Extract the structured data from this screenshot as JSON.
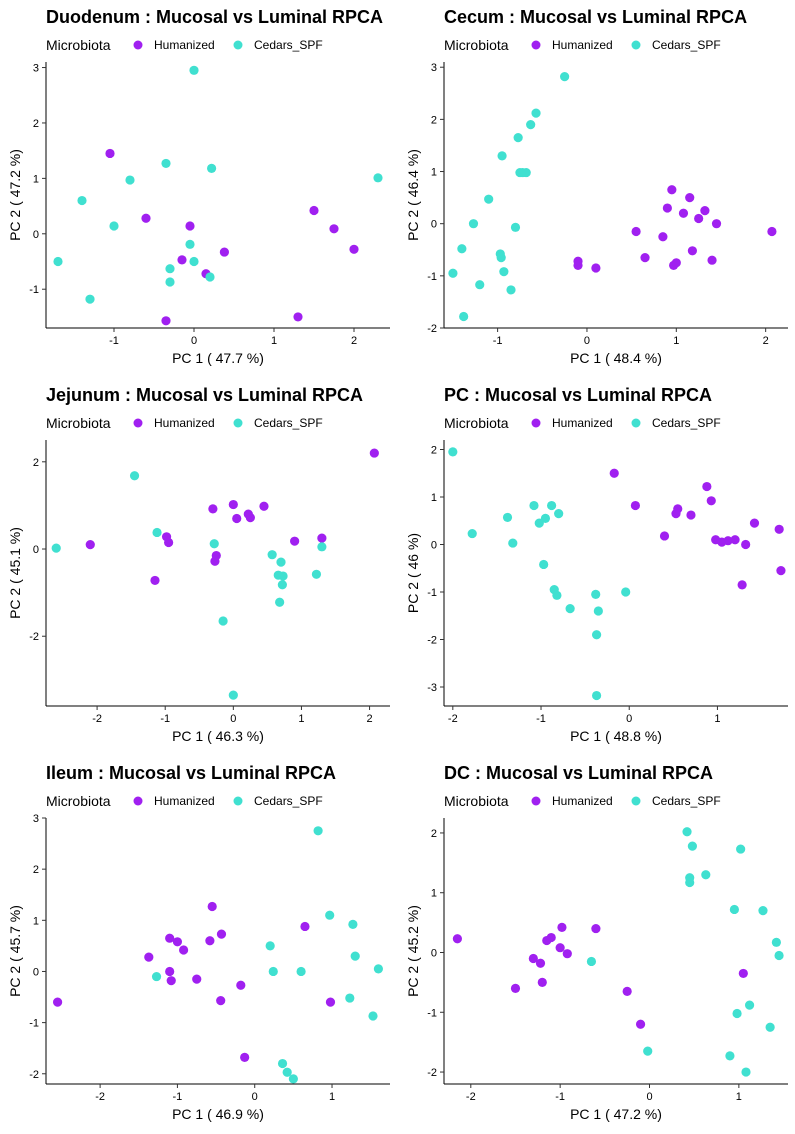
{
  "colors": {
    "humanized": "#A020F0",
    "cedars_spf": "#40E0D0"
  },
  "legend": {
    "title": "Microbiota",
    "entries": [
      "Humanized",
      "Cedars_SPF"
    ]
  },
  "chart_data": [
    {
      "type": "scatter",
      "title": "Duodenum : Mucosal vs Luminal RPCA",
      "xlabel": "PC 1 ( 47.7 %)",
      "ylabel": "PC 2 ( 47.2 %)",
      "xlim": [
        -1.85,
        2.45
      ],
      "ylim": [
        -1.7,
        3.1
      ],
      "xticks": [
        -1,
        0,
        1,
        2
      ],
      "yticks": [
        -1,
        0,
        1,
        2,
        3
      ],
      "grid": false,
      "legend_position": "top",
      "series": [
        {
          "name": "Humanized",
          "color": "#A020F0",
          "x": [
            -1.05,
            -0.6,
            -0.35,
            -0.15,
            -0.05,
            0.15,
            0.38,
            1.3,
            1.5,
            1.75,
            2.0
          ],
          "y": [
            1.45,
            0.28,
            -1.57,
            -0.47,
            0.14,
            -0.72,
            -0.33,
            -1.5,
            0.42,
            0.09,
            -0.28
          ]
        },
        {
          "name": "Cedars_SPF",
          "color": "#40E0D0",
          "x": [
            -1.7,
            -1.4,
            -1.3,
            -1.0,
            -0.8,
            -0.35,
            -0.3,
            -0.3,
            0.0,
            -0.05,
            0.0,
            0.22,
            0.2,
            2.3
          ],
          "y": [
            -0.5,
            0.6,
            -1.18,
            0.14,
            0.97,
            1.27,
            -0.63,
            -0.87,
            2.95,
            -0.19,
            -0.5,
            1.18,
            -0.78,
            1.01
          ]
        }
      ]
    },
    {
      "type": "scatter",
      "title": "Cecum : Mucosal vs Luminal RPCA",
      "xlabel": "PC 1 ( 48.4 %)",
      "ylabel": "PC 2 ( 46.4 %)",
      "xlim": [
        -1.6,
        2.25
      ],
      "ylim": [
        -2.0,
        3.1
      ],
      "xticks": [
        -1,
        0,
        1,
        2
      ],
      "yticks": [
        -2,
        -1,
        0,
        1,
        2,
        3
      ],
      "grid": false,
      "legend_position": "top",
      "series": [
        {
          "name": "Humanized",
          "color": "#A020F0",
          "x": [
            -0.1,
            -0.1,
            0.1,
            0.55,
            0.65,
            0.85,
            0.9,
            0.95,
            0.97,
            1.0,
            1.08,
            1.15,
            1.18,
            1.25,
            1.32,
            1.4,
            1.45,
            2.07
          ],
          "y": [
            -0.72,
            -0.8,
            -0.85,
            -0.15,
            -0.65,
            -0.25,
            0.3,
            0.65,
            -0.8,
            -0.75,
            0.2,
            0.5,
            -0.52,
            0.1,
            0.25,
            -0.7,
            0.0,
            -0.15
          ]
        },
        {
          "name": "Cedars_SPF",
          "color": "#40E0D0",
          "x": [
            -1.5,
            -1.4,
            -1.38,
            -1.27,
            -1.2,
            -1.1,
            -0.97,
            -0.96,
            -0.95,
            -0.93,
            -0.85,
            -0.8,
            -0.77,
            -0.75,
            -0.72,
            -0.68,
            -0.63,
            -0.57,
            -0.25
          ],
          "y": [
            -0.95,
            -0.48,
            -1.78,
            0.0,
            -1.17,
            0.47,
            -0.58,
            -0.65,
            1.3,
            -0.92,
            -1.27,
            -0.07,
            1.65,
            0.98,
            0.98,
            0.98,
            1.9,
            2.12,
            2.82
          ]
        }
      ]
    },
    {
      "type": "scatter",
      "title": "Jejunum : Mucosal vs Luminal RPCA",
      "xlabel": "PC 1 ( 46.3 %)",
      "ylabel": "PC 2 ( 45.1 %)",
      "xlim": [
        -2.75,
        2.3
      ],
      "ylim": [
        -3.6,
        2.5
      ],
      "xticks": [
        -2,
        -1,
        0,
        1,
        2
      ],
      "yticks": [
        -2,
        0,
        2
      ],
      "grid": false,
      "legend_position": "top",
      "series": [
        {
          "name": "Humanized",
          "color": "#A020F0",
          "x": [
            -2.1,
            -1.15,
            -0.98,
            -0.95,
            -0.3,
            -0.27,
            -0.25,
            0.0,
            0.05,
            0.22,
            0.25,
            0.45,
            0.9,
            1.3,
            2.07
          ],
          "y": [
            0.1,
            -0.72,
            0.28,
            0.15,
            0.92,
            -0.28,
            -0.15,
            1.02,
            0.7,
            0.8,
            0.72,
            0.98,
            0.18,
            0.25,
            2.2
          ]
        },
        {
          "name": "Cedars_SPF",
          "color": "#40E0D0",
          "x": [
            -2.6,
            -1.45,
            -1.12,
            -0.28,
            -0.15,
            0.0,
            0.57,
            0.66,
            0.68,
            0.7,
            0.72,
            0.73,
            1.22,
            1.3
          ],
          "y": [
            0.02,
            1.68,
            0.38,
            0.12,
            -1.65,
            -3.35,
            -0.13,
            -0.6,
            -1.22,
            -0.3,
            -0.82,
            -0.62,
            -0.58,
            0.05
          ]
        }
      ]
    },
    {
      "type": "scatter",
      "title": "PC : Mucosal vs Luminal RPCA",
      "xlabel": "PC 1 ( 48.8 %)",
      "ylabel": "PC 2 ( 46 %)",
      "xlim": [
        -2.1,
        1.8
      ],
      "ylim": [
        -3.4,
        2.2
      ],
      "xticks": [
        -2,
        -1,
        0,
        1
      ],
      "yticks": [
        -3,
        -2,
        -1,
        0,
        1,
        2
      ],
      "grid": false,
      "legend_position": "top",
      "series": [
        {
          "name": "Humanized",
          "color": "#A020F0",
          "x": [
            -0.17,
            0.07,
            0.4,
            0.53,
            0.55,
            0.7,
            0.88,
            0.93,
            0.98,
            1.05,
            1.12,
            1.2,
            1.28,
            1.32,
            1.42,
            1.7,
            1.72
          ],
          "y": [
            1.5,
            0.82,
            0.18,
            0.65,
            0.75,
            0.62,
            1.22,
            0.92,
            0.1,
            0.05,
            0.08,
            0.1,
            -0.85,
            0.0,
            0.45,
            0.32,
            -0.55
          ]
        },
        {
          "name": "Cedars_SPF",
          "color": "#40E0D0",
          "x": [
            -2.0,
            -1.78,
            -1.38,
            -1.32,
            -1.08,
            -1.02,
            -0.97,
            -0.95,
            -0.88,
            -0.85,
            -0.82,
            -0.8,
            -0.67,
            -0.38,
            -0.37,
            -0.37,
            -0.35,
            -0.04
          ],
          "y": [
            1.95,
            0.23,
            0.57,
            0.03,
            0.82,
            0.45,
            -0.42,
            0.55,
            0.82,
            -0.95,
            -1.07,
            0.65,
            -1.35,
            -1.05,
            -1.9,
            -3.18,
            -1.4,
            -1.0
          ]
        }
      ]
    },
    {
      "type": "scatter",
      "title": "Ileum : Mucosal vs Luminal RPCA",
      "xlabel": "PC 1 ( 46.9 %)",
      "ylabel": "PC 2 ( 45.7 %)",
      "xlim": [
        -2.7,
        1.75
      ],
      "ylim": [
        -2.2,
        3.0
      ],
      "xticks": [
        -2,
        -1,
        0,
        1
      ],
      "yticks": [
        -2,
        -1,
        0,
        1,
        2,
        3
      ],
      "grid": false,
      "legend_position": "top",
      "series": [
        {
          "name": "Humanized",
          "color": "#A020F0",
          "x": [
            -2.55,
            -1.37,
            -1.1,
            -1.1,
            -1.08,
            -1.0,
            -0.92,
            -0.75,
            -0.58,
            -0.55,
            -0.44,
            -0.43,
            -0.18,
            -0.13,
            0.65,
            0.98
          ],
          "y": [
            -0.6,
            0.28,
            0.65,
            0.0,
            -0.18,
            0.58,
            0.42,
            -0.15,
            0.6,
            1.27,
            -0.57,
            0.73,
            -0.27,
            -1.68,
            0.88,
            -0.6
          ]
        },
        {
          "name": "Cedars_SPF",
          "color": "#40E0D0",
          "x": [
            -1.27,
            0.2,
            0.24,
            0.36,
            0.42,
            0.5,
            0.6,
            0.82,
            0.97,
            1.23,
            1.27,
            1.3,
            1.53,
            1.6
          ],
          "y": [
            -0.1,
            0.5,
            0.0,
            -1.8,
            -1.97,
            -2.1,
            0.0,
            2.75,
            1.1,
            -0.52,
            0.92,
            0.3,
            -0.87,
            0.05
          ]
        }
      ]
    },
    {
      "type": "scatter",
      "title": "DC : Mucosal vs Luminal RPCA",
      "xlabel": "PC 1 ( 47.2 %)",
      "ylabel": "PC 2 ( 45.2 %)",
      "xlim": [
        -2.3,
        1.55
      ],
      "ylim": [
        -2.2,
        2.25
      ],
      "xticks": [
        -2,
        -1,
        0,
        1
      ],
      "yticks": [
        -2,
        -1,
        0,
        1,
        2
      ],
      "grid": false,
      "legend_position": "top",
      "series": [
        {
          "name": "Humanized",
          "color": "#A020F0",
          "x": [
            -2.15,
            -1.5,
            -1.3,
            -1.22,
            -1.2,
            -1.15,
            -1.1,
            -1.0,
            -0.98,
            -0.92,
            -0.6,
            -0.25,
            -0.1,
            1.05
          ],
          "y": [
            0.23,
            -0.6,
            -0.1,
            -0.18,
            -0.5,
            0.2,
            0.25,
            0.08,
            0.42,
            -0.02,
            0.4,
            -0.65,
            -1.2,
            -0.35
          ]
        },
        {
          "name": "Cedars_SPF",
          "color": "#40E0D0",
          "x": [
            -0.65,
            -0.02,
            0.42,
            0.45,
            0.45,
            0.48,
            0.63,
            0.9,
            0.95,
            0.98,
            1.02,
            1.08,
            1.12,
            1.27,
            1.35,
            1.42,
            1.45
          ],
          "y": [
            -0.15,
            -1.65,
            2.02,
            1.25,
            1.17,
            1.78,
            1.3,
            -1.73,
            0.72,
            -1.02,
            1.73,
            -2.0,
            -0.88,
            0.7,
            -1.25,
            0.17,
            -0.05
          ]
        }
      ]
    }
  ]
}
